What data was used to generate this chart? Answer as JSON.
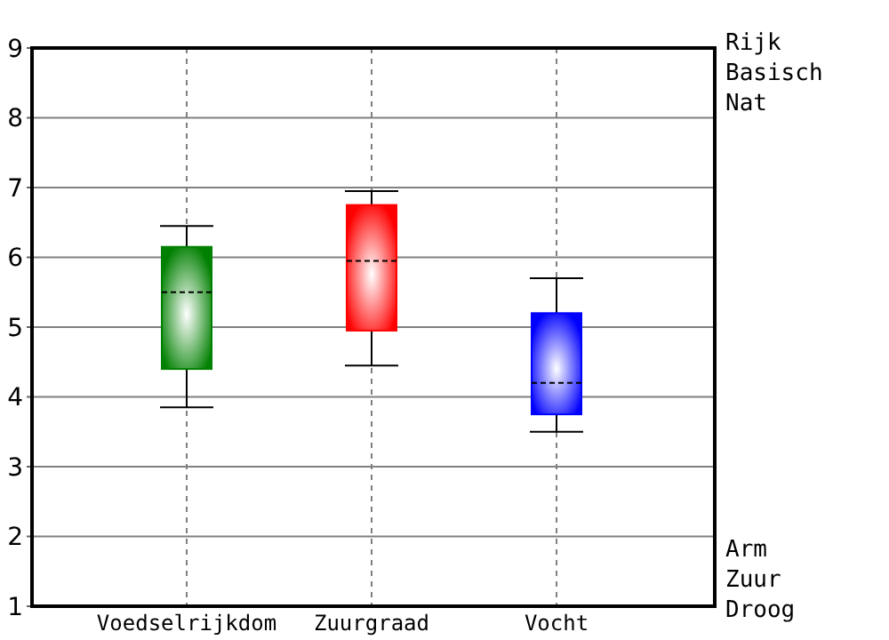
{
  "chart_data": {
    "type": "box",
    "categories": [
      "Voedselrijkdom",
      "Zuurgraad",
      "Vocht"
    ],
    "colors": [
      "#008000",
      "#ff0000",
      "#0000ff"
    ],
    "boxes": [
      {
        "low": 3.85,
        "q1": 4.4,
        "median": 5.5,
        "q3": 6.15,
        "high": 6.45
      },
      {
        "low": 4.45,
        "q1": 4.95,
        "median": 5.95,
        "q3": 6.75,
        "high": 6.95
      },
      {
        "low": 3.5,
        "q1": 3.75,
        "median": 4.2,
        "q3": 5.2,
        "high": 5.7
      }
    ],
    "ylim": [
      1,
      9
    ],
    "yticks": [
      1,
      2,
      3,
      4,
      5,
      6,
      7,
      8,
      9
    ],
    "grid": true,
    "annotations": [
      "Rijk",
      "Basisch",
      "Nat",
      "Arm",
      "Zuur",
      "Droog"
    ]
  }
}
